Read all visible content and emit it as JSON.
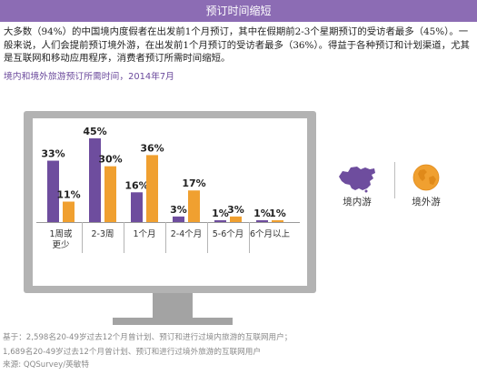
{
  "header": {
    "title": "预订时间缩短"
  },
  "intro": "大多数（94%）的中国境内度假者在出发前1个月预订，其中在假期前2-3个星期预订的受访者最多（45%）。一般来说，人们会提前预订境外游，在出发前1个月预订的受访者最多（36%）。得益于各种预订和计划渠道，尤其是互联网和移动应用程序，消费者预订所需时间缩短。",
  "chart_data": {
    "type": "bar",
    "title": "境内和境外旅游预订所需时间，2014年7月",
    "categories": [
      "1周或\n更少",
      "2-3周",
      "1个月",
      "2-4个月",
      "5-6个月",
      "6个月以上"
    ],
    "series": [
      {
        "name": "境内游",
        "values": [
          33,
          45,
          16,
          3,
          1,
          1
        ],
        "labels": [
          "33%",
          "45%",
          "16%",
          "3%",
          "1%",
          "1%"
        ]
      },
      {
        "name": "境外游",
        "values": [
          11,
          30,
          36,
          17,
          3,
          1
        ],
        "labels": [
          "11%",
          "30%",
          "36%",
          "17%",
          "3%",
          "1%"
        ]
      }
    ],
    "ylim": [
      0,
      45
    ],
    "grid": false,
    "legend": "right",
    "colors": {
      "domestic": "#6e4d9e",
      "outbound": "#f0a030"
    }
  },
  "legend": {
    "domestic_icon": "china-map-icon",
    "outbound_icon": "globe-icon"
  },
  "footnotes": [
    "基于：2,598名20-49岁过去12个月曾计划、预订和进行过境内旅游的互联网用户；",
    "1,689名20-49岁过去12个月曾计划、预订和进行过境外旅游的互联网用户",
    "来源: QQSurvey/英敏特"
  ]
}
